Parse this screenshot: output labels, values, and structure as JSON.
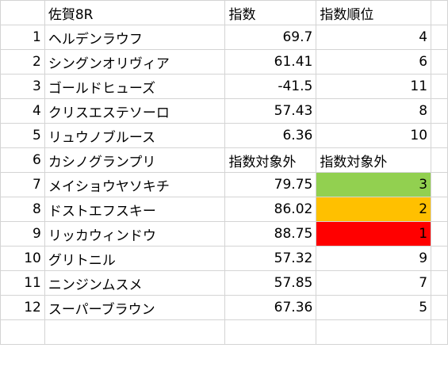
{
  "header": {
    "race": "佐賀8R",
    "index": "指数",
    "rank": "指数順位"
  },
  "rows": [
    {
      "no": "1",
      "name": "ヘルデンラウフ",
      "index": "69.7",
      "rank": "4"
    },
    {
      "no": "2",
      "name": "シングンオリヴィア",
      "index": "61.41",
      "rank": "6"
    },
    {
      "no": "3",
      "name": "ゴールドヒューズ",
      "index": "-41.5",
      "rank": "11"
    },
    {
      "no": "4",
      "name": "クリスエステソーロ",
      "index": "57.43",
      "rank": "8"
    },
    {
      "no": "5",
      "name": "リュウノブルース",
      "index": "6.36",
      "rank": "10"
    },
    {
      "no": "6",
      "name": "カシノグランプリ",
      "index": "指数対象外",
      "rank": "指数対象外"
    },
    {
      "no": "7",
      "name": "メイショウヤソキチ",
      "index": "79.75",
      "rank": "3",
      "highlight": "#92d050"
    },
    {
      "no": "8",
      "name": "ドストエフスキー",
      "index": "86.02",
      "rank": "2",
      "highlight": "#ffc000"
    },
    {
      "no": "9",
      "name": "リッカウィンドウ",
      "index": "88.75",
      "rank": "1",
      "highlight": "#ff0000"
    },
    {
      "no": "10",
      "name": "グリトニル",
      "index": "57.32",
      "rank": "9"
    },
    {
      "no": "11",
      "name": "ニンジンムスメ",
      "index": "57.85",
      "rank": "7"
    },
    {
      "no": "12",
      "name": "スーパーブラウン",
      "index": "67.36",
      "rank": "5"
    }
  ]
}
